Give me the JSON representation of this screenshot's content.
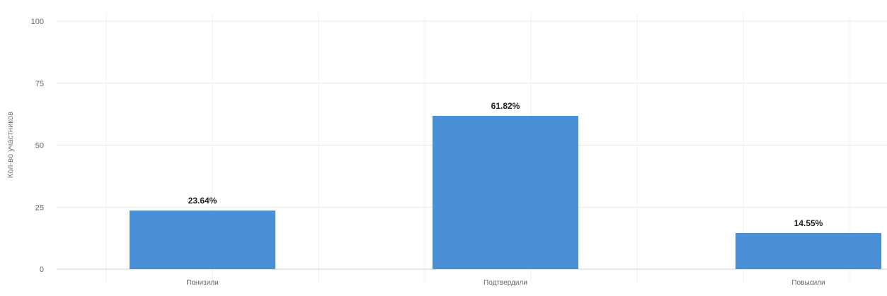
{
  "chart_data": {
    "type": "bar",
    "title": "",
    "xlabel": "",
    "ylabel": "Кол-во участников",
    "ylim": [
      0,
      100
    ],
    "yticks": [
      0,
      25,
      50,
      75,
      100
    ],
    "grid": true,
    "legend": "none",
    "categories": [
      "Понизили",
      "Подтвердили",
      "Повысили"
    ],
    "values": [
      23.64,
      61.82,
      14.55
    ],
    "data_labels": [
      "23.64%",
      "61.82%",
      "14.55%"
    ],
    "bar_color": "#4a90d9"
  }
}
